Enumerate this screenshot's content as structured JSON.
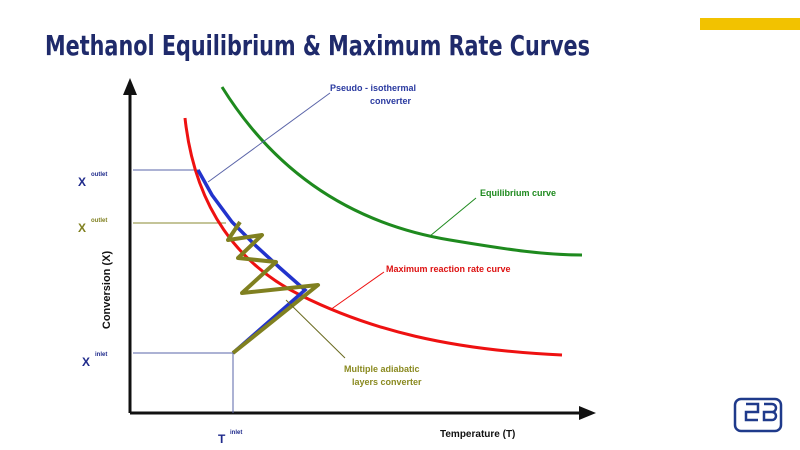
{
  "title": "Methanol Equilibrium & Maximum Rate Curves",
  "diagram": {
    "y_axis_label": "Conversion (X)",
    "x_axis_label": "Temperature (T)",
    "markers": [
      {
        "symbol": "X",
        "superscript": "outlet"
      },
      {
        "symbol": "X",
        "superscript": "outlet"
      },
      {
        "symbol": "X",
        "superscript": "inlet"
      },
      {
        "symbol": "T",
        "superscript": "inlet"
      }
    ],
    "annotations": {
      "pseudo_isothermal": [
        "Pseudo  -  isothermal",
        "converter"
      ],
      "equilibrium": "Equilibrium  curve",
      "max_rate": "Maximum  reaction rate curve",
      "adiabatic": [
        "Multiple adiabatic",
        "layers converter"
      ]
    }
  }
}
